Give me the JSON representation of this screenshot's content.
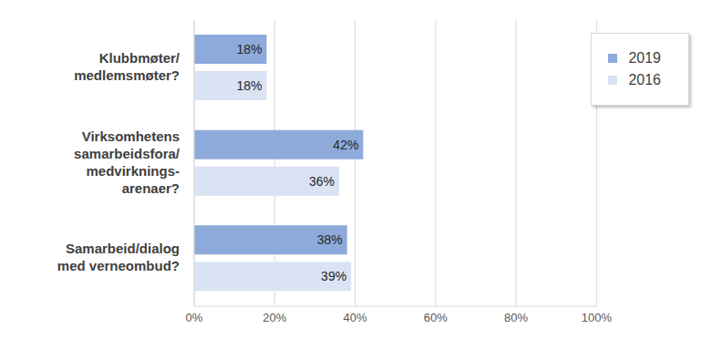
{
  "chart_data": {
    "type": "bar",
    "orientation": "horizontal",
    "categories": [
      "Klubbmøter/\nmedlemsmøter?",
      "Virksomhetens\nsamarbeidsfora/\nmedvirknings-\narenaer?",
      "Samarbeid/dialog\nmed verneombud?"
    ],
    "series": [
      {
        "name": "2019",
        "color": "#8eaadb",
        "values": [
          18,
          42,
          38
        ],
        "value_labels": [
          "18%",
          "42%",
          "38%"
        ]
      },
      {
        "name": "2016",
        "color": "#dae3f3",
        "values": [
          18,
          36,
          39
        ],
        "value_labels": [
          "18%",
          "36%",
          "39%"
        ]
      }
    ],
    "xlim": [
      0,
      100
    ],
    "xticks": [
      {
        "value": 0,
        "label": "0%"
      },
      {
        "value": 20,
        "label": "20%"
      },
      {
        "value": 40,
        "label": "40%"
      },
      {
        "value": 60,
        "label": "60%"
      },
      {
        "value": 80,
        "label": "80%"
      },
      {
        "value": 100,
        "label": "100%"
      }
    ],
    "grid": true,
    "legend": "top-right",
    "data_labels": true
  }
}
